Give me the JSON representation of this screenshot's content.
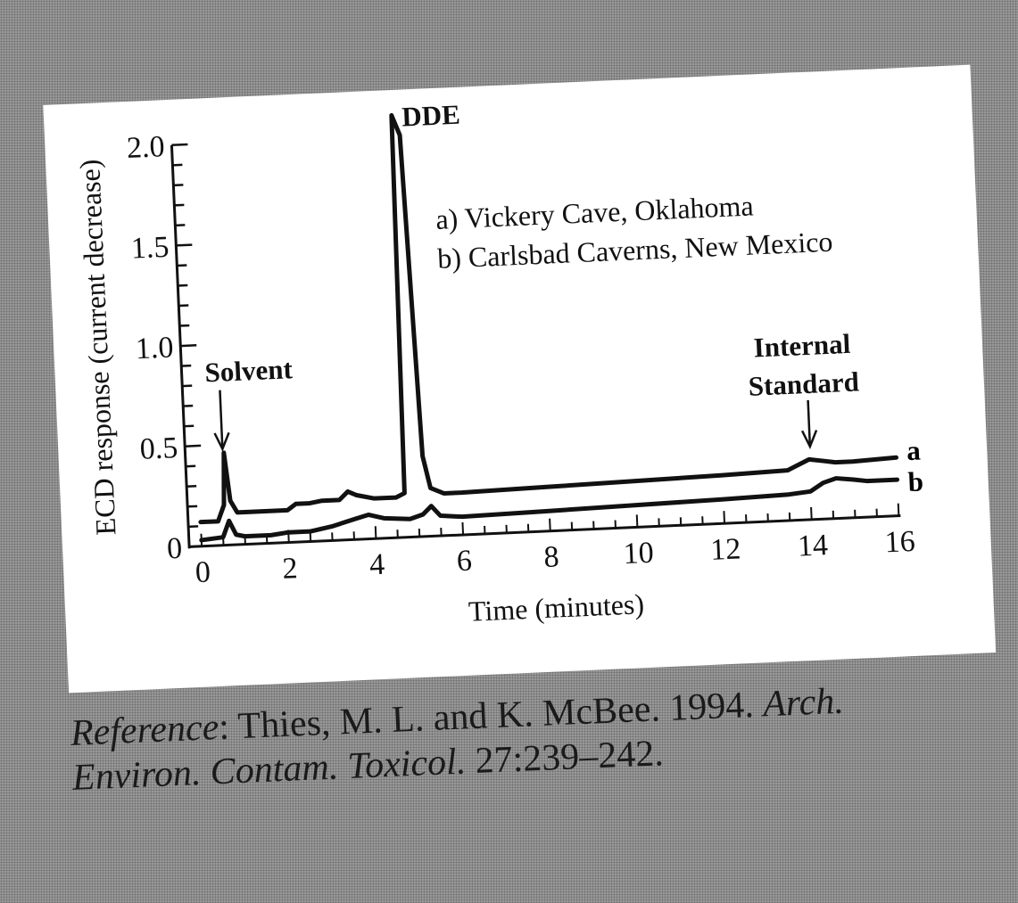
{
  "chart_data": {
    "type": "line",
    "xlabel": "Time (minutes)",
    "ylabel": "ECD response (current decrease)",
    "xlim": [
      0,
      16
    ],
    "ylim": [
      0,
      2.0
    ],
    "x_ticks": [
      "0",
      "2",
      "4",
      "6",
      "8",
      "10",
      "12",
      "14",
      "16"
    ],
    "y_ticks": [
      "0",
      "0.5",
      "1.0",
      "1.5",
      "2.0"
    ],
    "legend": [
      "a) Vickery Cave, Oklahoma",
      "b) Carlsbad Caverns, New Mexico"
    ],
    "annotations": {
      "dde": "DDE",
      "solvent": "Solvent",
      "internal_standard_line1": "Internal",
      "internal_standard_line2": "Standard"
    },
    "series": [
      {
        "name": "a",
        "points": [
          [
            0,
            0.12
          ],
          [
            0.4,
            0.12
          ],
          [
            0.55,
            0.2
          ],
          [
            0.6,
            0.46
          ],
          [
            0.7,
            0.22
          ],
          [
            0.85,
            0.16
          ],
          [
            1.2,
            0.16
          ],
          [
            2.0,
            0.16
          ],
          [
            2.2,
            0.19
          ],
          [
            2.5,
            0.19
          ],
          [
            2.8,
            0.2
          ],
          [
            3.2,
            0.2
          ],
          [
            3.4,
            0.24
          ],
          [
            3.6,
            0.22
          ],
          [
            4.0,
            0.2
          ],
          [
            4.5,
            0.2
          ],
          [
            4.7,
            0.22
          ],
          [
            4.78,
            2.1
          ],
          [
            4.95,
            2.0
          ],
          [
            5.15,
            0.4
          ],
          [
            5.3,
            0.24
          ],
          [
            5.6,
            0.21
          ],
          [
            6.0,
            0.21
          ],
          [
            8,
            0.22
          ],
          [
            10,
            0.23
          ],
          [
            12,
            0.24
          ],
          [
            13.5,
            0.25
          ],
          [
            13.8,
            0.28
          ],
          [
            14.0,
            0.3
          ],
          [
            14.3,
            0.29
          ],
          [
            14.6,
            0.28
          ],
          [
            15,
            0.28
          ],
          [
            16,
            0.29
          ]
        ]
      },
      {
        "name": "b",
        "points": [
          [
            0,
            0.03
          ],
          [
            0.5,
            0.04
          ],
          [
            0.65,
            0.12
          ],
          [
            0.8,
            0.05
          ],
          [
            1.0,
            0.04
          ],
          [
            1.6,
            0.04
          ],
          [
            2.0,
            0.05
          ],
          [
            2.5,
            0.05
          ],
          [
            3.0,
            0.07
          ],
          [
            3.5,
            0.1
          ],
          [
            3.85,
            0.12
          ],
          [
            4.2,
            0.1
          ],
          [
            4.8,
            0.09
          ],
          [
            5.1,
            0.11
          ],
          [
            5.3,
            0.15
          ],
          [
            5.5,
            0.1
          ],
          [
            6.0,
            0.09
          ],
          [
            8,
            0.1
          ],
          [
            10,
            0.11
          ],
          [
            12,
            0.12
          ],
          [
            13.5,
            0.13
          ],
          [
            14.0,
            0.14
          ],
          [
            14.3,
            0.18
          ],
          [
            14.6,
            0.2
          ],
          [
            15.0,
            0.19
          ],
          [
            15.3,
            0.18
          ],
          [
            16,
            0.18
          ]
        ]
      }
    ],
    "series_labels": [
      "a",
      "b"
    ]
  },
  "reference": {
    "lead": "Reference",
    "sep": ": Thies, M. L. and K. McBee. 1994. ",
    "journal_1": "Arch.",
    "journal_2": "Environ. Contam. Toxicol.",
    "citation_tail": " 27:239–242."
  }
}
